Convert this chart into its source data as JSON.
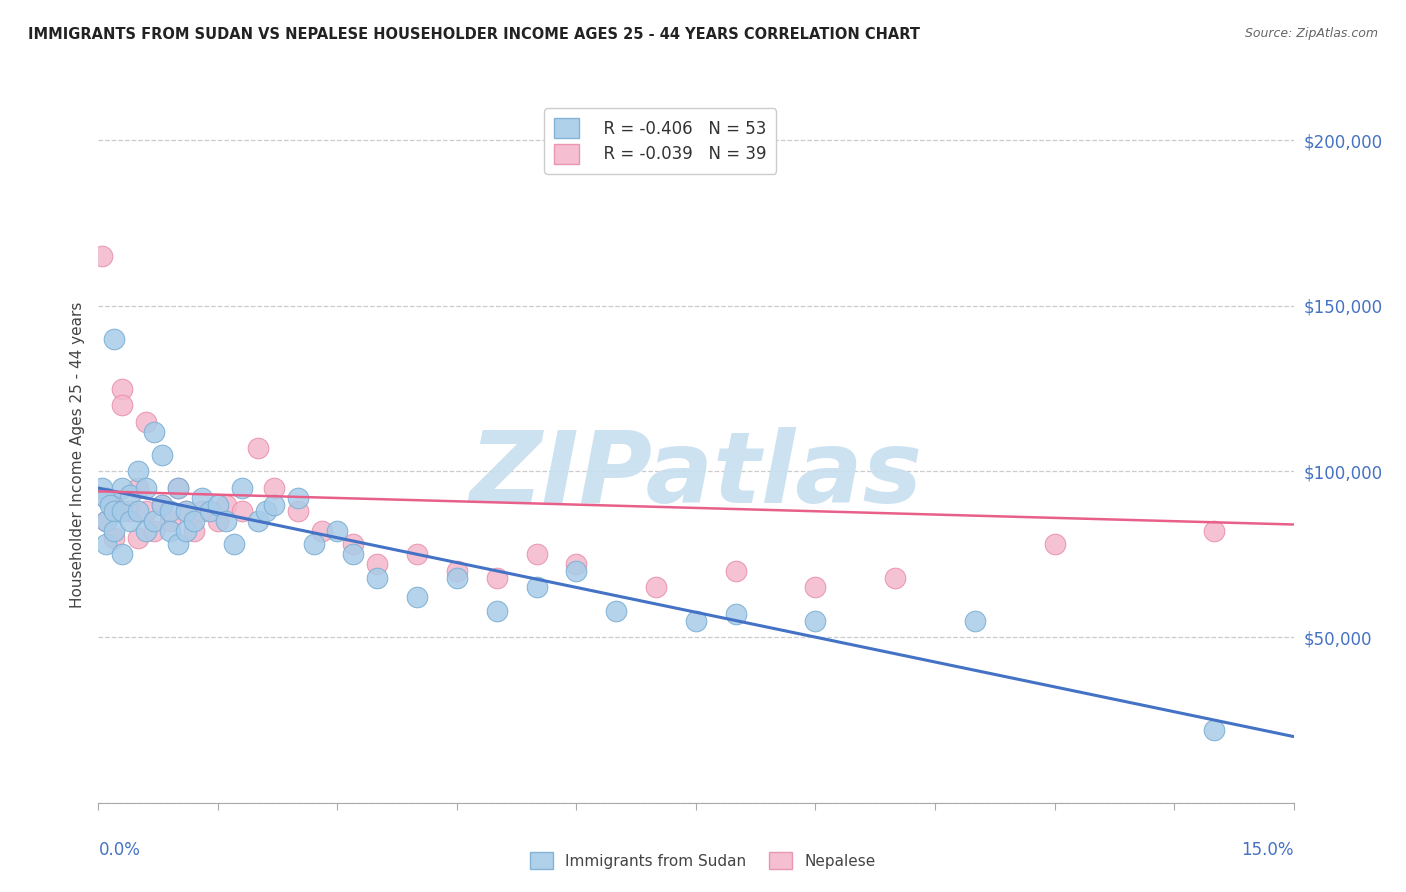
{
  "title": "IMMIGRANTS FROM SUDAN VS NEPALESE HOUSEHOLDER INCOME AGES 25 - 44 YEARS CORRELATION CHART",
  "source": "Source: ZipAtlas.com",
  "ylabel": "Householder Income Ages 25 - 44 years",
  "xlim": [
    0.0,
    0.15
  ],
  "ylim": [
    0,
    210000
  ],
  "yticks": [
    0,
    50000,
    100000,
    150000,
    200000
  ],
  "ytick_labels": [
    "",
    "$50,000",
    "$100,000",
    "$150,000",
    "$200,000"
  ],
  "sudan_color": "#a8cce8",
  "nepal_color": "#f4b8cc",
  "sudan_edge": "#7aaed4",
  "nepal_edge": "#e890aa",
  "watermark_color": "#c8dff0",
  "sudan_line_color": "#4472c4",
  "nepal_line_color": "#e8608a",
  "sudan_x": [
    0.0005,
    0.001,
    0.001,
    0.001,
    0.0015,
    0.002,
    0.002,
    0.002,
    0.003,
    0.003,
    0.003,
    0.004,
    0.004,
    0.005,
    0.005,
    0.006,
    0.006,
    0.007,
    0.007,
    0.008,
    0.008,
    0.009,
    0.009,
    0.01,
    0.01,
    0.011,
    0.011,
    0.012,
    0.013,
    0.014,
    0.015,
    0.016,
    0.017,
    0.018,
    0.02,
    0.021,
    0.022,
    0.025,
    0.027,
    0.03,
    0.032,
    0.035,
    0.04,
    0.045,
    0.05,
    0.055,
    0.06,
    0.065,
    0.075,
    0.08,
    0.09,
    0.11,
    0.14
  ],
  "sudan_y": [
    95000,
    92000,
    85000,
    78000,
    90000,
    88000,
    82000,
    140000,
    95000,
    88000,
    75000,
    93000,
    85000,
    100000,
    88000,
    95000,
    82000,
    112000,
    85000,
    105000,
    90000,
    88000,
    82000,
    95000,
    78000,
    88000,
    82000,
    85000,
    92000,
    88000,
    90000,
    85000,
    78000,
    95000,
    85000,
    88000,
    90000,
    92000,
    78000,
    82000,
    75000,
    68000,
    62000,
    68000,
    58000,
    65000,
    70000,
    58000,
    55000,
    57000,
    55000,
    55000,
    22000
  ],
  "nepal_x": [
    0.0005,
    0.001,
    0.001,
    0.002,
    0.002,
    0.003,
    0.003,
    0.004,
    0.005,
    0.005,
    0.006,
    0.006,
    0.007,
    0.008,
    0.009,
    0.01,
    0.011,
    0.012,
    0.013,
    0.015,
    0.016,
    0.018,
    0.02,
    0.022,
    0.025,
    0.028,
    0.032,
    0.035,
    0.04,
    0.045,
    0.05,
    0.055,
    0.06,
    0.07,
    0.08,
    0.09,
    0.1,
    0.12,
    0.14
  ],
  "nepal_y": [
    165000,
    92000,
    85000,
    90000,
    80000,
    125000,
    120000,
    88000,
    95000,
    80000,
    115000,
    88000,
    82000,
    90000,
    85000,
    95000,
    88000,
    82000,
    88000,
    85000,
    90000,
    88000,
    107000,
    95000,
    88000,
    82000,
    78000,
    72000,
    75000,
    70000,
    68000,
    75000,
    72000,
    65000,
    70000,
    65000,
    68000,
    78000,
    82000
  ],
  "sudan_line_x": [
    0.0,
    0.15
  ],
  "sudan_line_y": [
    95000,
    20000
  ],
  "nepal_line_x": [
    0.0,
    0.15
  ],
  "nepal_line_y": [
    94000,
    84000
  ]
}
